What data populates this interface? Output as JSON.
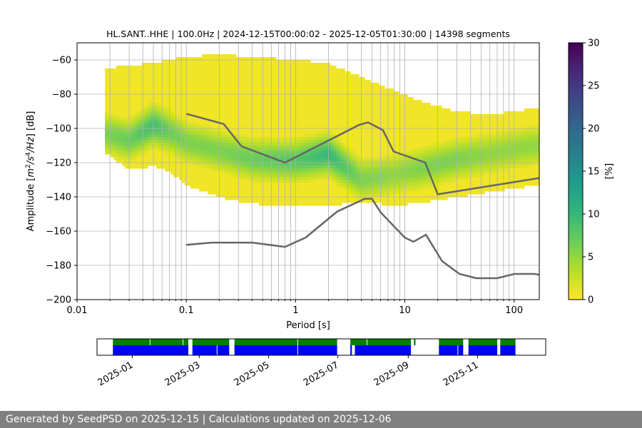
{
  "chart_data": [
    {
      "type": "heatmap",
      "subtype": "probabilistic-power-spectral-density",
      "title": "HL.SANT..HHE | 100.0Hz | 2024-12-15T00:00:02 - 2025-12-05T01:30:00 | 14398 segments",
      "xlabel": "Period [s]",
      "ylabel_parts": [
        "Amplitude [",
        "m",
        "2",
        "/",
        "s",
        "4",
        "/",
        "Hz",
        "] [dB]"
      ],
      "xscale": "log",
      "xlim": [
        0.01,
        170
      ],
      "ylim": [
        -200,
        -50
      ],
      "x_ticks": [
        {
          "value": 0.01,
          "label": "0.01"
        },
        {
          "value": 0.1,
          "label": "0.1"
        },
        {
          "value": 1,
          "label": "1"
        },
        {
          "value": 10,
          "label": "10"
        },
        {
          "value": 100,
          "label": "100"
        }
      ],
      "y_ticks": [
        {
          "value": -60,
          "label": "−60"
        },
        {
          "value": -80,
          "label": "−80"
        },
        {
          "value": -100,
          "label": "−100"
        },
        {
          "value": -120,
          "label": "−120"
        },
        {
          "value": -140,
          "label": "−140"
        },
        {
          "value": -160,
          "label": "−160"
        },
        {
          "value": -180,
          "label": "−180"
        },
        {
          "value": -200,
          "label": "−200"
        }
      ],
      "grid_periods": [
        0.02,
        0.03,
        0.04,
        0.05,
        0.06,
        0.07,
        0.08,
        0.09,
        0.2,
        0.3,
        0.4,
        0.5,
        0.6,
        0.7,
        0.8,
        0.9,
        2,
        3,
        4,
        5,
        6,
        7,
        8,
        9,
        20,
        30,
        40,
        50,
        60,
        70,
        80,
        90
      ],
      "grid_db": [
        -60,
        -80,
        -100,
        -120,
        -140,
        -160,
        -180
      ],
      "colorbar": {
        "label": "[%]",
        "min": 0,
        "max": 30,
        "ticks": [
          {
            "value": 0,
            "label": "0"
          },
          {
            "value": 5,
            "label": "5"
          },
          {
            "value": 10,
            "label": "10"
          },
          {
            "value": 15,
            "label": "15"
          },
          {
            "value": 20,
            "label": "20"
          },
          {
            "value": 25,
            "label": "25"
          },
          {
            "value": 30,
            "label": "30"
          }
        ],
        "colors": [
          "#fde725",
          "#b5de2b",
          "#6ece58",
          "#35b779",
          "#1f9e89",
          "#26828e",
          "#31688e",
          "#3e4989",
          "#482878",
          "#440154"
        ]
      },
      "density_profile": [
        {
          "period": 0.018,
          "upper": -65,
          "lower": -114,
          "mode": -103,
          "peak_pct": 6
        },
        {
          "period": 0.03,
          "upper": -63,
          "lower": -124,
          "mode": -107,
          "peak_pct": 7
        },
        {
          "period": 0.05,
          "upper": -62,
          "lower": -122,
          "mode": -98,
          "peak_pct": 9
        },
        {
          "period": 0.07,
          "upper": -60,
          "lower": -125,
          "mode": -102,
          "peak_pct": 7
        },
        {
          "period": 0.1,
          "upper": -58,
          "lower": -133,
          "mode": -108,
          "peak_pct": 6
        },
        {
          "period": 0.2,
          "upper": -57,
          "lower": -140,
          "mode": -113,
          "peak_pct": 6
        },
        {
          "period": 0.4,
          "upper": -58,
          "lower": -144,
          "mode": -118,
          "peak_pct": 7
        },
        {
          "period": 1,
          "upper": -60,
          "lower": -145,
          "mode": -119,
          "peak_pct": 8
        },
        {
          "period": 2,
          "upper": -62,
          "lower": -145,
          "mode": -115,
          "peak_pct": 10
        },
        {
          "period": 4,
          "upper": -70,
          "lower": -143,
          "mode": -130,
          "peak_pct": 6
        },
        {
          "period": 8,
          "upper": -78,
          "lower": -145,
          "mode": -127,
          "peak_pct": 5
        },
        {
          "period": 15,
          "upper": -85,
          "lower": -143,
          "mode": -123,
          "peak_pct": 6
        },
        {
          "period": 30,
          "upper": -90,
          "lower": -140,
          "mode": -118,
          "peak_pct": 6
        },
        {
          "period": 60,
          "upper": -92,
          "lower": -137,
          "mode": -115,
          "peak_pct": 5
        },
        {
          "period": 100,
          "upper": -90,
          "lower": -135,
          "mode": -112,
          "peak_pct": 5
        },
        {
          "period": 170,
          "upper": -88,
          "lower": -133,
          "mode": -110,
          "peak_pct": 5
        }
      ],
      "series": [
        {
          "name": "NHNM",
          "color": "#666666",
          "x": [
            0.1,
            0.22,
            0.32,
            0.8,
            3.8,
            4.6,
            6.3,
            7.9,
            15.4,
            20,
            170
          ],
          "y": [
            -91.5,
            -97.4,
            -110.5,
            -120,
            -98,
            -96.5,
            -101,
            -113.5,
            -120,
            -138.5,
            -129
          ]
        },
        {
          "name": "NLNM",
          "color": "#666666",
          "x": [
            0.1,
            0.17,
            0.4,
            0.8,
            1.24,
            2.4,
            4.3,
            5,
            6,
            10,
            12,
            15.6,
            21.9,
            31.6,
            45,
            70,
            101,
            154,
            170
          ],
          "y": [
            -168,
            -166.7,
            -166.7,
            -169.2,
            -163.7,
            -148.6,
            -141.1,
            -141.1,
            -149,
            -163.8,
            -166.2,
            -162.1,
            -177.5,
            -185,
            -187.5,
            -187.5,
            -185,
            -185,
            -185.5
          ]
        }
      ]
    },
    {
      "type": "timeline",
      "subtype": "data-coverage",
      "x_ticks": [
        {
          "date": "2025-01-01",
          "label": "2025-01"
        },
        {
          "date": "2025-03-01",
          "label": "2025-03"
        },
        {
          "date": "2025-05-01",
          "label": "2025-05"
        },
        {
          "date": "2025-07-01",
          "label": "2025-07"
        },
        {
          "date": "2025-09-01",
          "label": "2025-09"
        },
        {
          "date": "2025-11-01",
          "label": "2025-11"
        }
      ],
      "range": [
        "2024-12-01",
        "2025-12-31"
      ],
      "series": [
        {
          "name": "data-availability",
          "color": "#008000",
          "segments": [
            [
              "2024-12-15",
              "2025-01-17"
            ],
            [
              "2025-01-17",
              "2025-02-15"
            ],
            [
              "2025-02-15",
              "2025-02-20"
            ],
            [
              "2025-02-23",
              "2025-03-28"
            ],
            [
              "2025-04-01",
              "2025-05-27"
            ],
            [
              "2025-05-27",
              "2025-07-01"
            ],
            [
              "2025-07-12",
              "2025-07-27"
            ],
            [
              "2025-07-27",
              "2025-09-04"
            ],
            [
              "2025-09-06",
              "2025-09-08"
            ],
            [
              "2025-09-28",
              "2025-10-20"
            ],
            [
              "2025-10-24",
              "2025-11-19"
            ],
            [
              "2025-11-21",
              "2025-12-05"
            ]
          ]
        },
        {
          "name": "psd-segments",
          "color": "#0000ff",
          "segments": [
            [
              "2024-12-15",
              "2025-02-20"
            ],
            [
              "2025-02-23",
              "2025-03-17"
            ],
            [
              "2025-03-17",
              "2025-03-28"
            ],
            [
              "2025-04-01",
              "2025-05-27"
            ],
            [
              "2025-05-27",
              "2025-07-01"
            ],
            [
              "2025-07-12",
              "2025-07-14"
            ],
            [
              "2025-07-16",
              "2025-09-04"
            ],
            [
              "2025-09-28",
              "2025-10-15"
            ],
            [
              "2025-10-15",
              "2025-10-20"
            ],
            [
              "2025-10-24",
              "2025-11-19"
            ],
            [
              "2025-11-21",
              "2025-12-05"
            ]
          ]
        }
      ]
    }
  ],
  "footer": {
    "text": "Generated by SeedPSD on 2025-12-15 | Calculations updated on 2025-12-06"
  }
}
